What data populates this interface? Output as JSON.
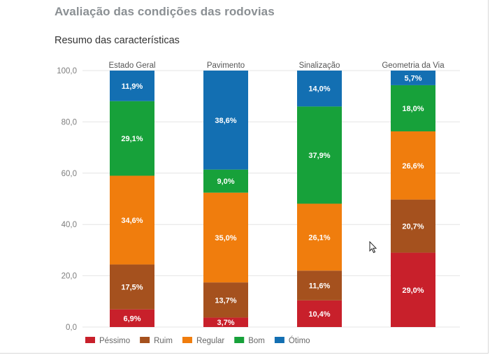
{
  "page": {
    "title": "Avaliação das condições das rodovias"
  },
  "chart_data": {
    "type": "bar",
    "stacked": true,
    "title": "Resumo das características",
    "xlabel": "",
    "ylabel": "",
    "ylim": [
      0,
      100
    ],
    "yticks": [
      "0,0",
      "20,0",
      "40,0",
      "60,0",
      "80,0",
      "100,0"
    ],
    "categories": [
      "Estado Geral",
      "Pavimento",
      "Sinalização",
      "Geometria da Via"
    ],
    "series": [
      {
        "name": "Péssimo",
        "color": "#c8202b",
        "values": [
          6.9,
          3.7,
          10.4,
          29.0
        ],
        "labels": [
          "6,9%",
          "3,7%",
          "10,4%",
          "29,0%"
        ]
      },
      {
        "name": "Ruim",
        "color": "#a5511e",
        "values": [
          17.5,
          13.7,
          11.6,
          20.7
        ],
        "labels": [
          "17,5%",
          "13,7%",
          "11,6%",
          "20,7%"
        ]
      },
      {
        "name": "Regular",
        "color": "#f07d0d",
        "values": [
          34.6,
          35.0,
          26.1,
          26.6
        ],
        "labels": [
          "34,6%",
          "35,0%",
          "26,1%",
          "26,6%"
        ]
      },
      {
        "name": "Bom",
        "color": "#17a13a",
        "values": [
          29.1,
          9.0,
          37.9,
          18.0
        ],
        "labels": [
          "29,1%",
          "9,0%",
          "37,9%",
          "18,0%"
        ]
      },
      {
        "name": "Ótimo",
        "color": "#136fb2",
        "values": [
          11.9,
          38.6,
          14.0,
          5.7
        ],
        "labels": [
          "11,9%",
          "38,6%",
          "14,0%",
          "5,7%"
        ]
      }
    ],
    "grid": true,
    "legend": "bottom-left"
  }
}
